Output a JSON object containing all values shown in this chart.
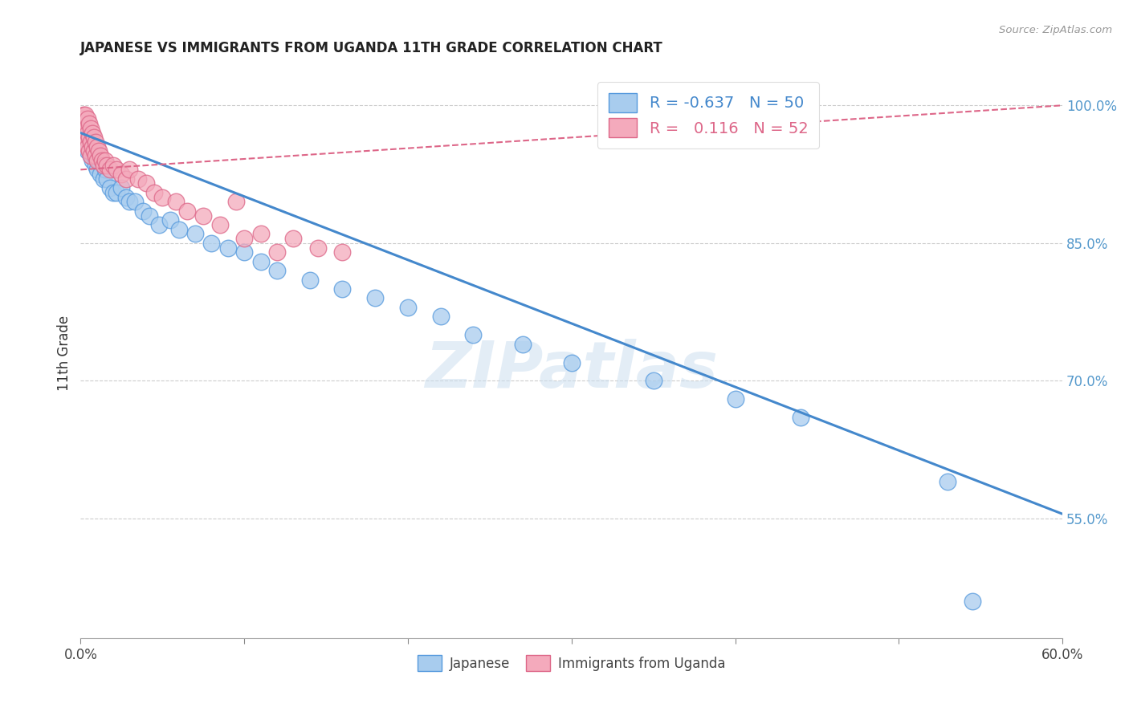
{
  "title": "JAPANESE VS IMMIGRANTS FROM UGANDA 11TH GRADE CORRELATION CHART",
  "source": "Source: ZipAtlas.com",
  "ylabel": "11th Grade",
  "watermark": "ZIPatlas",
  "blue_R": "-0.637",
  "blue_N": "50",
  "pink_R": "0.116",
  "pink_N": "52",
  "xmin": 0.0,
  "xmax": 0.6,
  "ymin": 0.42,
  "ymax": 1.04,
  "yticks": [
    0.55,
    0.7,
    0.85,
    1.0
  ],
  "ytick_labels": [
    "55.0%",
    "70.0%",
    "85.0%",
    "100.0%"
  ],
  "blue_scatter_x": [
    0.001,
    0.002,
    0.002,
    0.003,
    0.003,
    0.004,
    0.004,
    0.005,
    0.006,
    0.006,
    0.007,
    0.008,
    0.009,
    0.01,
    0.011,
    0.012,
    0.014,
    0.015,
    0.016,
    0.018,
    0.02,
    0.022,
    0.025,
    0.028,
    0.03,
    0.033,
    0.038,
    0.042,
    0.048,
    0.055,
    0.06,
    0.07,
    0.08,
    0.09,
    0.1,
    0.11,
    0.12,
    0.14,
    0.16,
    0.18,
    0.2,
    0.22,
    0.24,
    0.27,
    0.3,
    0.35,
    0.4,
    0.44,
    0.53,
    0.545
  ],
  "blue_scatter_y": [
    0.98,
    0.975,
    0.96,
    0.97,
    0.955,
    0.965,
    0.95,
    0.96,
    0.955,
    0.945,
    0.94,
    0.945,
    0.935,
    0.93,
    0.94,
    0.925,
    0.92,
    0.93,
    0.92,
    0.91,
    0.905,
    0.905,
    0.91,
    0.9,
    0.895,
    0.895,
    0.885,
    0.88,
    0.87,
    0.875,
    0.865,
    0.86,
    0.85,
    0.845,
    0.84,
    0.83,
    0.82,
    0.81,
    0.8,
    0.79,
    0.78,
    0.77,
    0.75,
    0.74,
    0.72,
    0.7,
    0.68,
    0.66,
    0.59,
    0.46
  ],
  "pink_scatter_x": [
    0.001,
    0.001,
    0.002,
    0.002,
    0.002,
    0.003,
    0.003,
    0.003,
    0.004,
    0.004,
    0.004,
    0.005,
    0.005,
    0.005,
    0.006,
    0.006,
    0.006,
    0.007,
    0.007,
    0.008,
    0.008,
    0.009,
    0.009,
    0.01,
    0.01,
    0.011,
    0.012,
    0.013,
    0.014,
    0.015,
    0.016,
    0.018,
    0.02,
    0.022,
    0.025,
    0.028,
    0.03,
    0.035,
    0.04,
    0.045,
    0.05,
    0.058,
    0.065,
    0.075,
    0.085,
    0.095,
    0.1,
    0.11,
    0.12,
    0.13,
    0.145,
    0.16
  ],
  "pink_scatter_y": [
    0.985,
    0.97,
    0.98,
    0.965,
    0.99,
    0.975,
    0.96,
    0.99,
    0.985,
    0.97,
    0.955,
    0.98,
    0.965,
    0.95,
    0.975,
    0.96,
    0.945,
    0.97,
    0.955,
    0.965,
    0.95,
    0.96,
    0.945,
    0.955,
    0.94,
    0.95,
    0.945,
    0.94,
    0.935,
    0.94,
    0.935,
    0.93,
    0.935,
    0.93,
    0.925,
    0.92,
    0.93,
    0.92,
    0.915,
    0.905,
    0.9,
    0.895,
    0.885,
    0.88,
    0.87,
    0.895,
    0.855,
    0.86,
    0.84,
    0.855,
    0.845,
    0.84
  ],
  "blue_line_x": [
    0.0,
    0.6
  ],
  "blue_line_y": [
    0.97,
    0.555
  ],
  "pink_line_x": [
    0.0,
    0.6
  ],
  "pink_line_y": [
    0.93,
    1.0
  ],
  "blue_color": "#A8CCEE",
  "pink_color": "#F4AABC",
  "blue_edge_color": "#5599DD",
  "pink_edge_color": "#DD6688",
  "blue_line_color": "#4488CC",
  "pink_line_color": "#EE7799"
}
